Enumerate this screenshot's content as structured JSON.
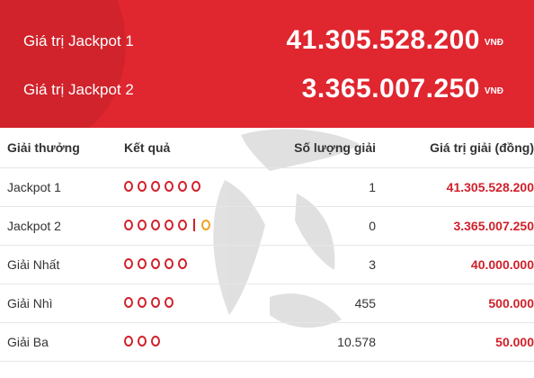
{
  "header": {
    "rows": [
      {
        "label": "Giá trị Jackpot 1",
        "amount": "41.305.528.200",
        "unit": "VNĐ"
      },
      {
        "label": "Giá trị Jackpot 2",
        "amount": "3.365.007.250",
        "unit": "VNĐ"
      }
    ]
  },
  "table": {
    "headers": [
      "Giải thưởng",
      "Kết quả",
      "Số lượng giải",
      "Giá trị giải (đồng)"
    ],
    "rows": [
      {
        "prize": "Jackpot 1",
        "count": "1",
        "value": "41.305.528.200",
        "balls": 6,
        "bonus_ball": false
      },
      {
        "prize": "Jackpot 2",
        "count": "0",
        "value": "3.365.007.250",
        "balls": 5,
        "bonus_ball": true
      },
      {
        "prize": "Giải Nhất",
        "count": "3",
        "value": "40.000.000",
        "balls": 5,
        "bonus_ball": false
      },
      {
        "prize": "Giải Nhì",
        "count": "455",
        "value": "500.000",
        "balls": 4,
        "bonus_ball": false
      },
      {
        "prize": "Giải Ba",
        "count": "10.578",
        "value": "50.000",
        "balls": 3,
        "bonus_ball": false
      }
    ]
  },
  "colors": {
    "header_bg": "#e0262f",
    "ball": "#d0202a",
    "bonus_ball": "#f0a020",
    "money": "#d0202a"
  },
  "icons": {
    "result_ball": "ring-icon",
    "bonus_ball": "ring-icon-orange",
    "watermark": "logo-watermark"
  }
}
